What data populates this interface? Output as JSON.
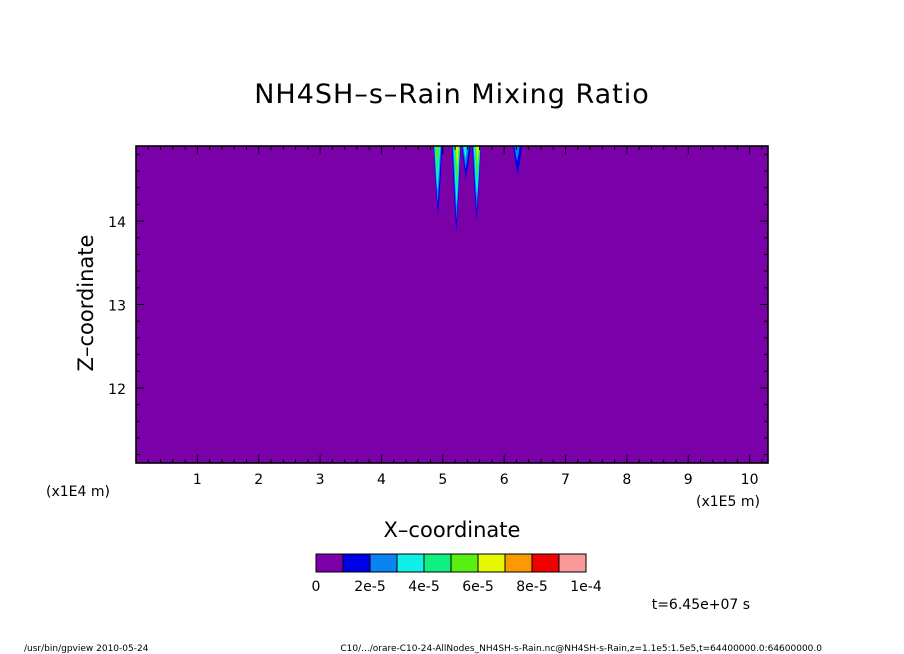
{
  "chart_data": {
    "type": "contour",
    "title": "NH4SH–s–Rain Mixing Ratio",
    "xlabel": "X–coordinate",
    "ylabel": "Z–coordinate",
    "x_unit_left": "(x1E4 m)",
    "x_unit_right": "(x1E5 m)",
    "xlim": [
      0,
      10.3
    ],
    "ylim": [
      11.1,
      14.9
    ],
    "x_ticks": [
      "1",
      "2",
      "3",
      "4",
      "5",
      "6",
      "7",
      "8",
      "9",
      "10"
    ],
    "y_ticks": [
      "12",
      "13",
      "14"
    ],
    "background_level": 0,
    "levels": [
      "0",
      "2e-5",
      "4e-5",
      "6e-5",
      "8e-5",
      "1e-4"
    ],
    "level_colors": [
      "#7a00a8",
      "#0000e8",
      "#0a84f0",
      "#10f0e8",
      "#10f080",
      "#58f010",
      "#e4f800",
      "#f89a00",
      "#f00000",
      "#f89a9a"
    ],
    "features": [
      {
        "x": 4.92,
        "z_bottom": 14.05,
        "max_level": 5
      },
      {
        "x": 5.22,
        "z_bottom": 13.85,
        "max_level": 6
      },
      {
        "x": 5.38,
        "z_bottom": 14.5,
        "max_level": 3
      },
      {
        "x": 5.55,
        "z_bottom": 14.0,
        "max_level": 6
      },
      {
        "x": 6.22,
        "z_bottom": 14.55,
        "max_level": 2
      }
    ],
    "time_label": "t=6.45e+07 s"
  },
  "footer": {
    "left": "/usr/bin/gpview  2010-05-24",
    "right": "C10/.../orare-C10-24-AllNodes_NH4SH-s-Rain.nc@NH4SH-s-Rain,z=1.1e5:1.5e5,t=64400000.0:64600000.0"
  }
}
